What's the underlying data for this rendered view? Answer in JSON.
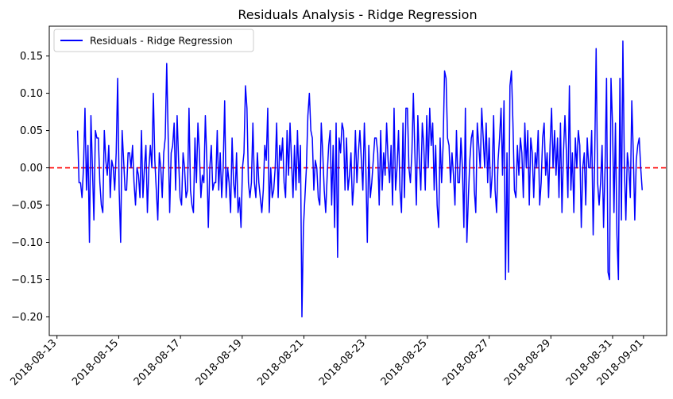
{
  "chart_data": {
    "type": "line",
    "title": "Residuals Analysis - Ridge Regression",
    "xlabel": "",
    "ylabel": "",
    "x_range": [
      "2018-08-12T18:00:00",
      "2018-09-01T18:00:00"
    ],
    "x_ticks": [
      "2018-08-13",
      "2018-08-15",
      "2018-08-17",
      "2018-08-19",
      "2018-08-21",
      "2018-08-23",
      "2018-08-25",
      "2018-08-27",
      "2018-08-29",
      "2018-08-31",
      "2018-09-01"
    ],
    "ylim": [
      -0.225,
      0.19
    ],
    "y_ticks": [
      0.15,
      0.1,
      0.05,
      0.0,
      -0.05,
      -0.1,
      -0.15,
      -0.2
    ],
    "grid": false,
    "legend": {
      "position": "top-left",
      "entries": [
        "Residuals - Ridge Regression"
      ]
    },
    "reference_line": {
      "y": 0.0,
      "style": "dashed",
      "color": "#ff0000"
    },
    "series": [
      {
        "name": "Residuals - Ridge Regression",
        "color": "#0000ff",
        "x_start": "2018-08-13T16:00:00",
        "x_end": "2018-08-31T23:00:00",
        "values": [
          0.05,
          -0.02,
          -0.02,
          -0.04,
          0.0,
          0.08,
          -0.03,
          0.03,
          -0.1,
          0.07,
          0.0,
          -0.07,
          0.05,
          0.04,
          0.04,
          -0.02,
          -0.05,
          -0.06,
          0.05,
          0.01,
          -0.01,
          0.03,
          -0.04,
          0.01,
          0.0,
          -0.03,
          0.02,
          0.12,
          -0.03,
          -0.1,
          0.05,
          0.01,
          -0.03,
          -0.03,
          0.02,
          0.02,
          0.0,
          0.03,
          -0.02,
          -0.05,
          0.0,
          -0.01,
          -0.04,
          0.05,
          -0.04,
          0.0,
          0.03,
          -0.06,
          0.0,
          0.03,
          0.0,
          0.1,
          0.01,
          -0.03,
          -0.07,
          0.02,
          0.0,
          -0.04,
          0.02,
          0.04,
          0.14,
          0.04,
          -0.06,
          0.02,
          0.03,
          0.06,
          -0.03,
          0.07,
          0.01,
          -0.04,
          -0.05,
          0.02,
          0.0,
          -0.04,
          -0.03,
          0.08,
          -0.03,
          -0.05,
          -0.06,
          0.04,
          -0.02,
          0.06,
          0.02,
          -0.04,
          -0.01,
          -0.02,
          0.07,
          0.01,
          -0.08,
          0.0,
          0.03,
          -0.03,
          -0.02,
          -0.02,
          0.05,
          -0.03,
          0.02,
          -0.04,
          0.0,
          0.09,
          -0.04,
          0.0,
          -0.02,
          -0.06,
          0.04,
          -0.02,
          -0.04,
          0.02,
          -0.06,
          -0.04,
          -0.08,
          0.0,
          0.02,
          0.11,
          0.08,
          -0.02,
          -0.04,
          -0.02,
          0.06,
          -0.02,
          -0.04,
          0.02,
          -0.02,
          -0.04,
          -0.06,
          -0.03,
          0.03,
          0.01,
          0.08,
          -0.06,
          0.0,
          -0.04,
          -0.03,
          0.0,
          0.06,
          -0.04,
          0.03,
          0.01,
          0.04,
          -0.02,
          -0.04,
          0.05,
          -0.01,
          0.06,
          0.01,
          -0.04,
          0.03,
          -0.03,
          0.05,
          -0.02,
          0.03,
          -0.2,
          -0.08,
          -0.04,
          0.0,
          0.07,
          0.1,
          0.05,
          0.04,
          -0.03,
          0.01,
          0.0,
          -0.04,
          -0.05,
          0.06,
          0.02,
          -0.03,
          -0.06,
          -0.01,
          0.03,
          0.05,
          -0.05,
          0.03,
          -0.08,
          0.06,
          -0.12,
          0.04,
          0.02,
          0.06,
          0.05,
          -0.03,
          0.04,
          -0.03,
          -0.01,
          0.02,
          -0.05,
          -0.02,
          0.05,
          -0.02,
          0.02,
          0.05,
          0.01,
          -0.03,
          0.06,
          0.0,
          -0.1,
          0.03,
          -0.04,
          -0.02,
          0.01,
          0.04,
          0.04,
          0.02,
          -0.05,
          0.05,
          -0.03,
          0.02,
          -0.01,
          0.06,
          0.01,
          -0.02,
          0.03,
          -0.05,
          0.08,
          -0.03,
          0.0,
          0.05,
          -0.03,
          -0.06,
          0.06,
          -0.04,
          0.08,
          0.08,
          0.0,
          -0.02,
          0.02,
          0.1,
          0.02,
          -0.05,
          0.07,
          0.01,
          -0.03,
          0.06,
          0.03,
          -0.03,
          0.07,
          0.0,
          0.08,
          0.03,
          0.06,
          -0.03,
          0.03,
          -0.05,
          -0.08,
          0.04,
          -0.02,
          0.03,
          0.13,
          0.12,
          0.04,
          0.03,
          -0.02,
          0.02,
          -0.01,
          -0.05,
          0.05,
          -0.02,
          -0.02,
          0.04,
          0.0,
          -0.08,
          0.08,
          -0.1,
          -0.04,
          0.01,
          0.04,
          0.05,
          -0.03,
          -0.06,
          0.06,
          0.03,
          0.0,
          0.08,
          0.04,
          0.0,
          0.06,
          -0.02,
          0.04,
          -0.04,
          -0.01,
          0.07,
          -0.03,
          -0.06,
          0.01,
          0.04,
          0.08,
          -0.01,
          0.09,
          -0.15,
          0.02,
          -0.14,
          0.11,
          0.13,
          0.06,
          -0.03,
          -0.04,
          0.03,
          -0.01,
          0.04,
          0.02,
          -0.04,
          0.06,
          0.0,
          0.05,
          -0.05,
          0.04,
          0.02,
          -0.04,
          0.02,
          0.0,
          0.05,
          -0.05,
          -0.02,
          0.04,
          0.06,
          -0.01,
          0.02,
          -0.04,
          0.03,
          0.08,
          0.0,
          0.05,
          -0.01,
          0.04,
          -0.04,
          0.06,
          -0.06,
          0.02,
          0.07,
          0.02,
          -0.04,
          0.11,
          -0.03,
          0.02,
          -0.06,
          0.04,
          0.0,
          0.05,
          0.03,
          -0.08,
          0.0,
          0.02,
          -0.05,
          0.04,
          0.0,
          0.0,
          0.05,
          -0.09,
          0.01,
          0.16,
          -0.02,
          -0.05,
          -0.02,
          0.03,
          -0.08,
          0.0,
          0.12,
          -0.14,
          -0.15,
          0.12,
          0.06,
          -0.06,
          0.06,
          -0.09,
          -0.15,
          0.12,
          -0.07,
          0.17,
          0.0,
          -0.07,
          0.02,
          0.0,
          -0.04,
          0.09,
          0.02,
          -0.07,
          0.01,
          0.03,
          0.04,
          0.0,
          -0.03
        ]
      }
    ]
  }
}
